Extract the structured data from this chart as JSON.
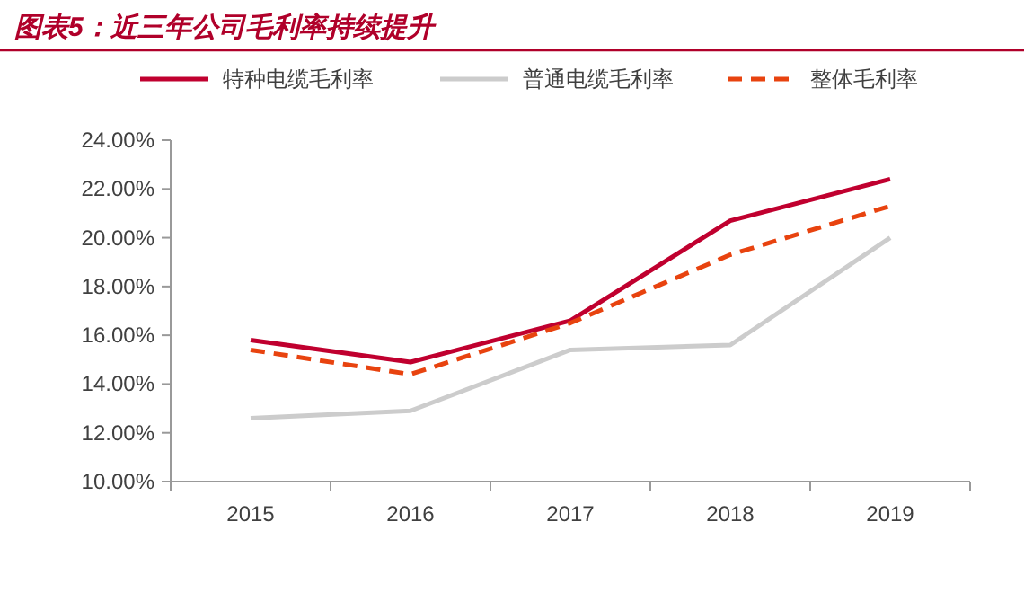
{
  "chart_data": {
    "type": "line",
    "title": "图表5：近三年公司毛利率持续提升",
    "categories": [
      "2015",
      "2016",
      "2017",
      "2018",
      "2019"
    ],
    "series": [
      {
        "name": "特种电缆毛利率",
        "color": "#c0002f",
        "values": [
          15.8,
          14.9,
          16.6,
          20.7,
          22.4
        ]
      },
      {
        "name": "普通电缆毛利率",
        "color": "#cccccc",
        "values": [
          12.6,
          12.9,
          15.4,
          15.6,
          20.0
        ]
      },
      {
        "name": "整体毛利率",
        "color": "#e8430f",
        "values": [
          15.4,
          14.4,
          16.5,
          19.3,
          21.3
        ],
        "line_style": "dashed"
      }
    ],
    "ylim": [
      10,
      24
    ],
    "yticks": [
      {
        "value": 10,
        "label": "10.00%"
      },
      {
        "value": 12,
        "label": "12.00%"
      },
      {
        "value": 14,
        "label": "14.00%"
      },
      {
        "value": 16,
        "label": "16.00%"
      },
      {
        "value": 18,
        "label": "18.00%"
      },
      {
        "value": 20,
        "label": "20.00%"
      },
      {
        "value": 22,
        "label": "22.00%"
      },
      {
        "value": 24,
        "label": "24.00%"
      }
    ],
    "legend": "top",
    "grid": false,
    "marker": "none"
  }
}
